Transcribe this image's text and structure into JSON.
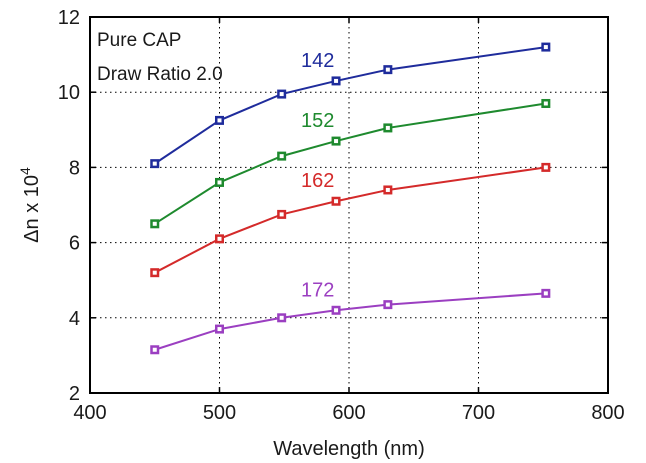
{
  "chart_data": {
    "type": "line",
    "xlabel": "Wavelength (nm)",
    "ylabel": "Δn x 10",
    "ylabel_superscript": "4",
    "xlim": [
      400,
      800
    ],
    "ylim": [
      2,
      12
    ],
    "x_ticks": [
      400,
      500,
      600,
      700,
      800
    ],
    "y_ticks": [
      2,
      4,
      6,
      8,
      10,
      12
    ],
    "grid": true,
    "annotations": [
      "Pure CAP",
      "Draw Ratio 2.0"
    ],
    "series": [
      {
        "name": "142",
        "color": "#1f2c9c",
        "x": [
          450,
          500,
          548,
          590,
          630,
          752
        ],
        "y": [
          8.1,
          9.25,
          9.95,
          10.3,
          10.6,
          11.2
        ]
      },
      {
        "name": "152",
        "color": "#1e8a2e",
        "x": [
          450,
          500,
          548,
          590,
          630,
          752
        ],
        "y": [
          6.5,
          7.6,
          8.3,
          8.7,
          9.05,
          9.7
        ]
      },
      {
        "name": "162",
        "color": "#d42a2a",
        "x": [
          450,
          500,
          548,
          590,
          630,
          752
        ],
        "y": [
          5.2,
          6.1,
          6.75,
          7.1,
          7.4,
          8.0
        ]
      },
      {
        "name": "172",
        "color": "#9b3fc1",
        "x": [
          450,
          500,
          548,
          590,
          630,
          752
        ],
        "y": [
          3.15,
          3.7,
          4.0,
          4.2,
          4.35,
          4.65
        ]
      }
    ]
  }
}
